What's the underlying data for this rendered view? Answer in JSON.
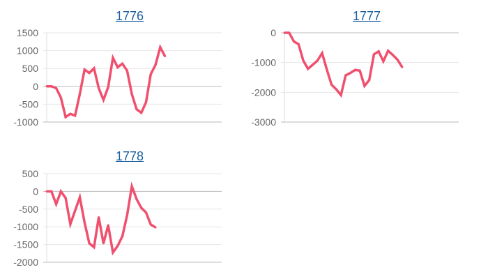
{
  "chart_data": [
    {
      "type": "line",
      "title": "1776",
      "x": [
        1,
        2,
        3,
        4,
        5,
        6,
        7,
        8,
        9,
        10,
        11,
        12,
        13,
        14,
        15,
        16,
        17,
        18,
        19,
        20,
        21,
        22,
        23,
        24,
        25,
        26
      ],
      "x_slots": 38,
      "values": [
        0,
        0,
        -50,
        -315,
        -860,
        -770,
        -820,
        -215,
        470,
        375,
        505,
        -50,
        -380,
        -20,
        800,
        535,
        635,
        440,
        -215,
        -640,
        -740,
        -445,
        340,
        600,
        1095,
        845
      ],
      "ylim": [
        -1000,
        1500
      ],
      "yticks": [
        1500,
        1000,
        500,
        0,
        -500,
        -1000
      ],
      "ytick_labels": [
        "1500",
        "1000",
        "500",
        "0",
        "-500",
        "-1000"
      ],
      "grid": true,
      "line_color": "#f0506e"
    },
    {
      "type": "line",
      "title": "1777",
      "x": [
        1,
        2,
        3,
        4,
        5,
        6,
        7,
        8,
        9,
        10,
        11,
        12,
        13,
        14,
        15,
        16,
        17,
        18,
        19,
        20,
        21,
        22,
        23,
        24,
        25,
        26
      ],
      "x_slots": 38,
      "values": [
        0,
        0,
        -290,
        -385,
        -935,
        -1210,
        -1075,
        -935,
        -685,
        -1235,
        -1745,
        -1900,
        -2095,
        -1430,
        -1350,
        -1250,
        -1270,
        -1785,
        -1590,
        -725,
        -625,
        -960,
        -605,
        -745,
        -905,
        -1155
      ],
      "ylim": [
        -3000,
        0
      ],
      "yticks": [
        0,
        -1000,
        -2000,
        -3000
      ],
      "ytick_labels": [
        "0",
        "-1000",
        "-2000",
        "-3000"
      ],
      "grid": true,
      "line_color": "#f0506e"
    },
    {
      "type": "line",
      "title": "1778",
      "x": [
        1,
        2,
        3,
        4,
        5,
        6,
        7,
        8,
        9,
        10,
        11,
        12,
        13,
        14,
        15,
        16,
        17,
        18,
        19,
        20,
        21,
        22,
        23,
        24
      ],
      "x_slots": 38,
      "values": [
        0,
        0,
        -360,
        0,
        -185,
        -925,
        -545,
        -165,
        -875,
        -1465,
        -1575,
        -730,
        -1465,
        -955,
        -1725,
        -1540,
        -1265,
        -675,
        145,
        -215,
        -465,
        -595,
        -935,
        -1015
      ],
      "ylim": [
        -2000,
        500
      ],
      "yticks": [
        500,
        0,
        -500,
        -1000,
        -1500,
        -2000
      ],
      "ytick_labels": [
        "500",
        "0",
        "-500",
        "-1000",
        "-1500",
        "-2000"
      ],
      "grid": true,
      "line_color": "#f0506e"
    }
  ]
}
